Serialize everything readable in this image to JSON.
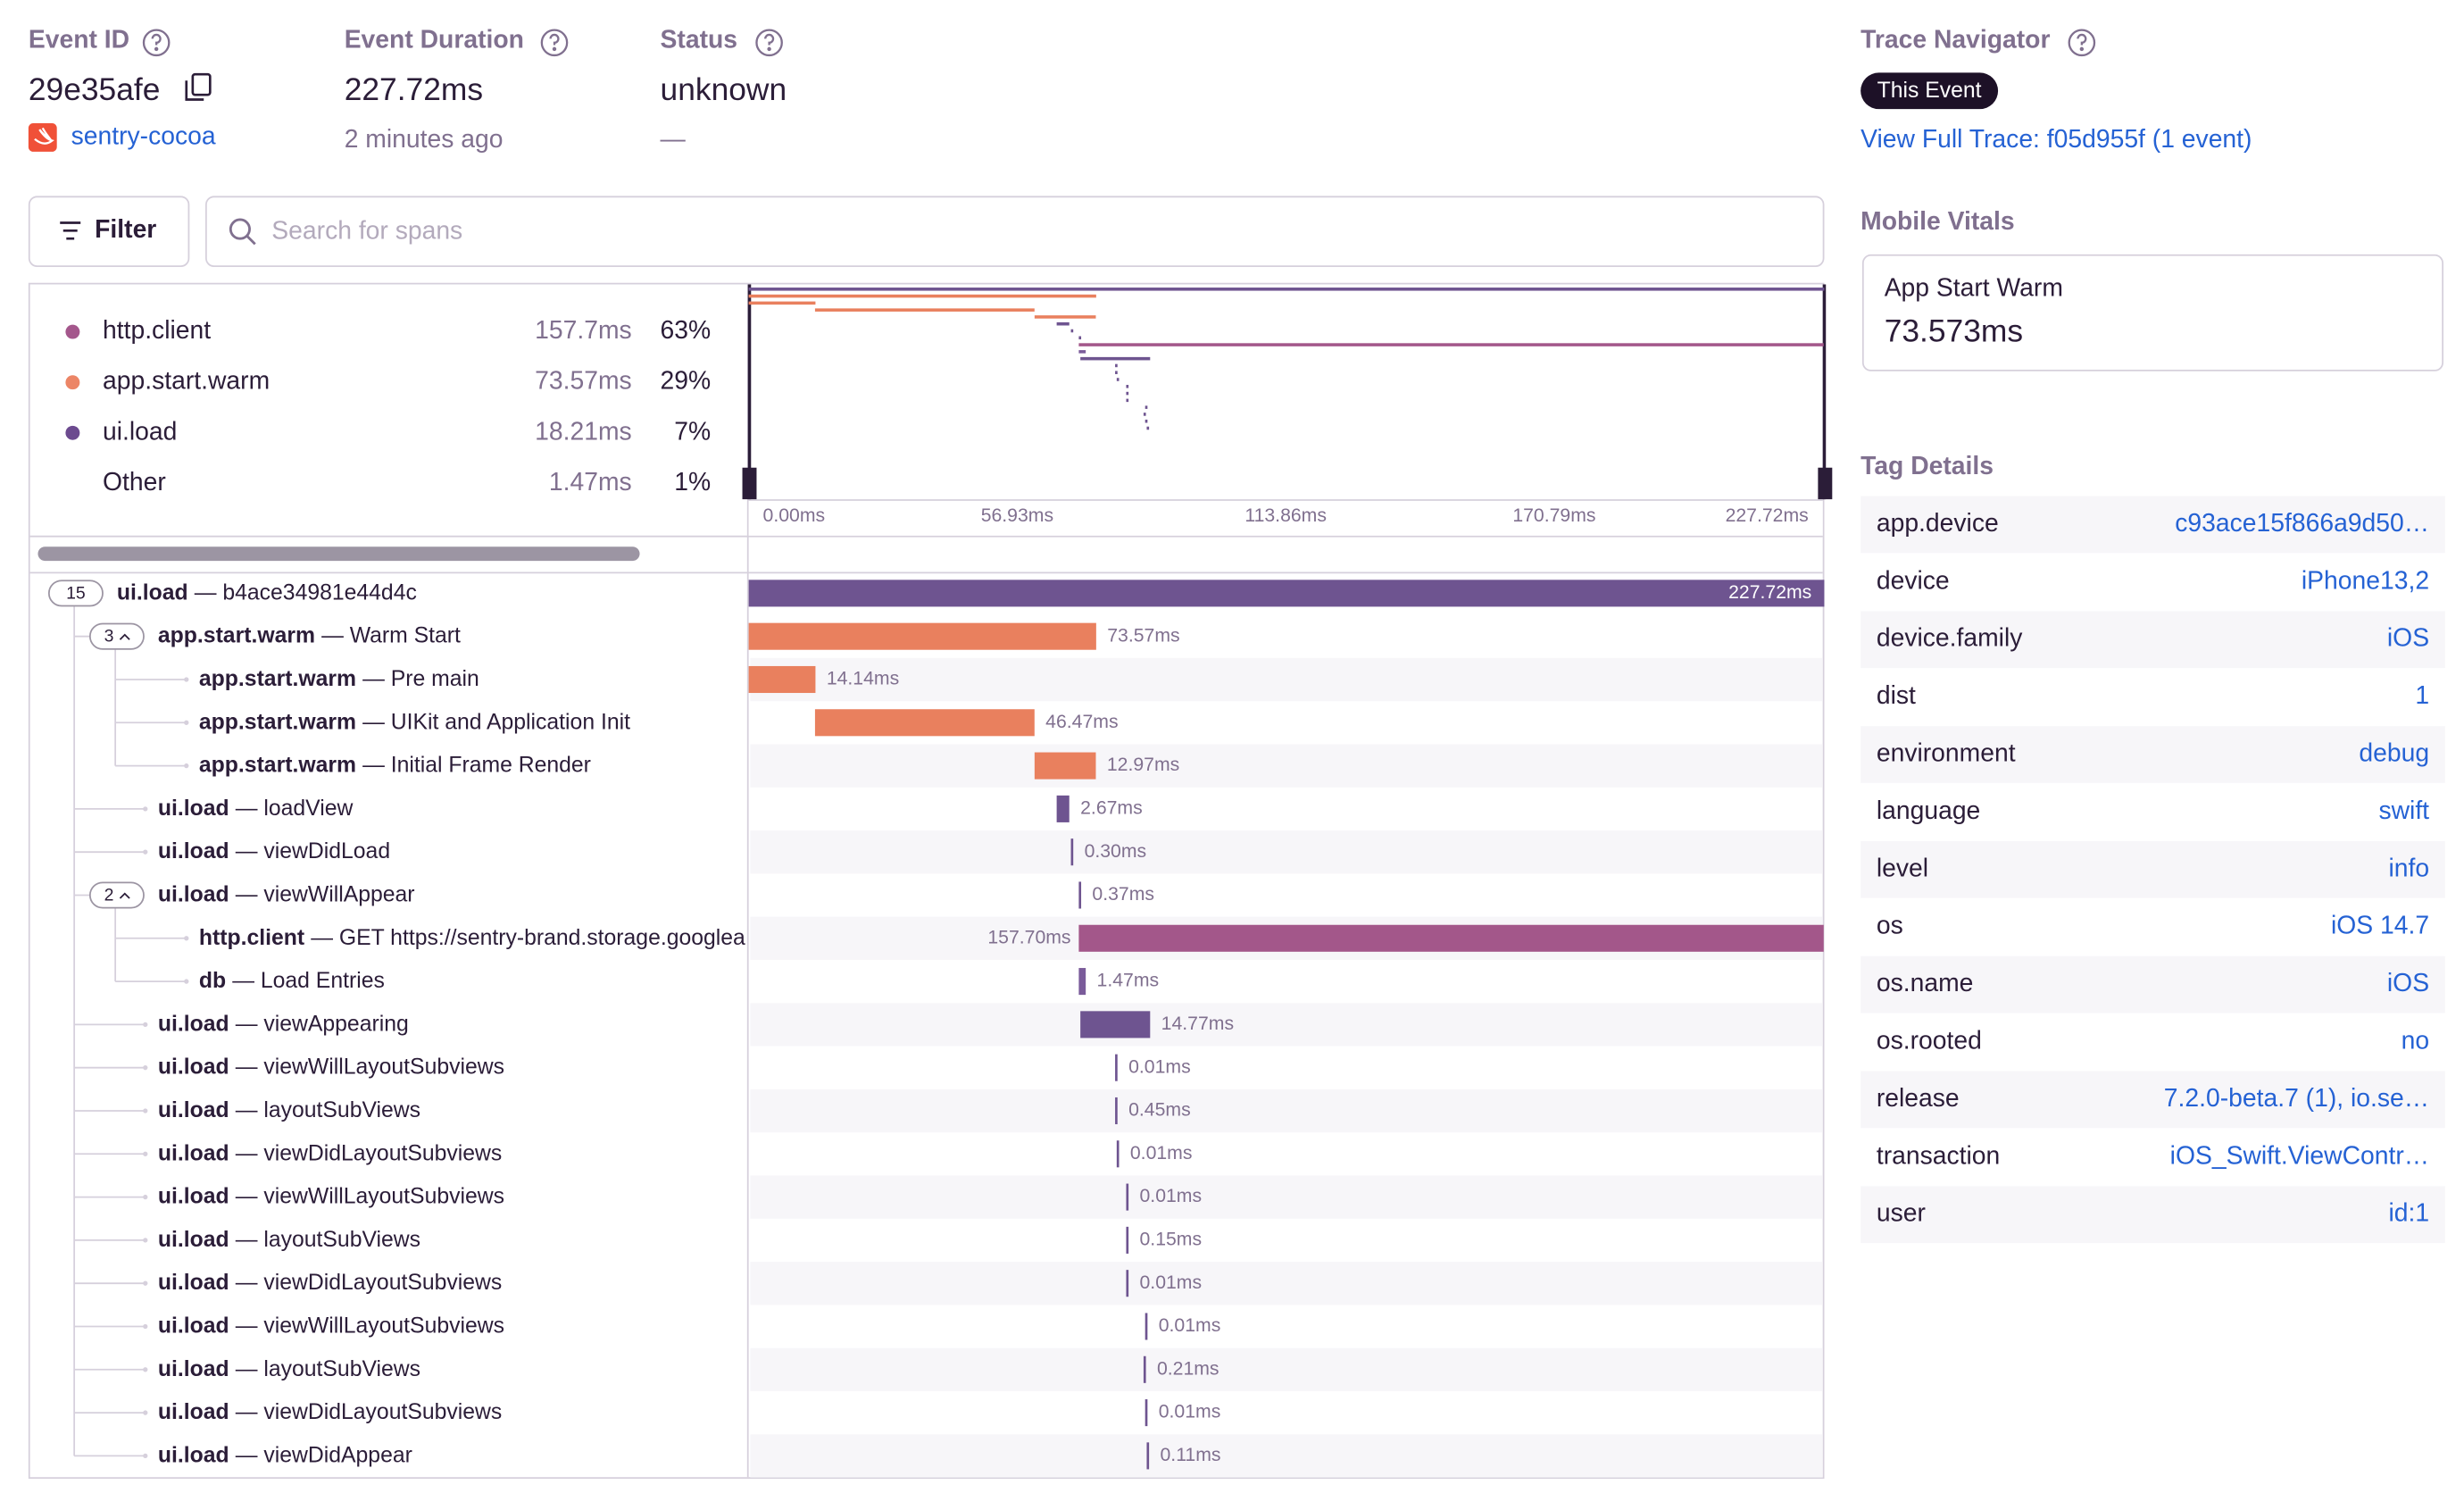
{
  "header": {
    "event_id_label": "Event ID",
    "event_id": "29e35afe",
    "project": "sentry-cocoa",
    "duration_label": "Event Duration",
    "duration": "227.72ms",
    "duration_relative": "2 minutes ago",
    "status_label": "Status",
    "status": "unknown",
    "status_sub": "—"
  },
  "trace_navigator": {
    "title": "Trace Navigator",
    "badge": "This Event",
    "link": "View Full Trace: f05d955f (1 event)"
  },
  "toolbar": {
    "filter": "Filter",
    "search_placeholder": "Search for spans"
  },
  "breakdown": [
    {
      "name": "http.client",
      "duration": "157.7ms",
      "percent": "63%",
      "color": "#a4578c"
    },
    {
      "name": "app.start.warm",
      "duration": "73.57ms",
      "percent": "29%",
      "color": "#ec8566"
    },
    {
      "name": "ui.load",
      "duration": "18.21ms",
      "percent": "7%",
      "color": "#6c4a8f"
    },
    {
      "name": "Other",
      "duration": "1.47ms",
      "percent": "1%"
    }
  ],
  "minimap": {
    "ticks": [
      "0.00ms",
      "56.93ms",
      "113.86ms",
      "170.79ms",
      "227.72ms"
    ]
  },
  "spans": [
    {
      "op": "ui.load",
      "description": "— b4ace34981e44d4c",
      "duration_ms": 227.72,
      "duration_label": "227.72ms",
      "children": "15",
      "color": "#6e5490"
    },
    {
      "op": "app.start.warm",
      "description": "— Warm Start",
      "duration_ms": 73.57,
      "duration_label": "73.57ms",
      "children": "3",
      "color": "#e9805e"
    },
    {
      "op": "app.start.warm",
      "description": "— Pre main",
      "duration_ms": 14.14,
      "duration_label": "14.14ms",
      "color": "#e9805e"
    },
    {
      "op": "app.start.warm",
      "description": "— UIKit and Application Init",
      "duration_ms": 46.47,
      "duration_label": "46.47ms",
      "color": "#e9805e"
    },
    {
      "op": "app.start.warm",
      "description": "— Initial Frame Render",
      "duration_ms": 12.97,
      "duration_label": "12.97ms",
      "color": "#e9805e"
    },
    {
      "op": "ui.load",
      "description": "— loadView",
      "duration_ms": 2.67,
      "duration_label": "2.67ms",
      "color": "#6e5490"
    },
    {
      "op": "ui.load",
      "description": "— viewDidLoad",
      "duration_ms": 0.3,
      "duration_label": "0.30ms",
      "color": "#6e5490"
    },
    {
      "op": "ui.load",
      "description": "— viewWillAppear",
      "duration_ms": 0.37,
      "duration_label": "0.37ms",
      "children": "2",
      "color": "#6e5490"
    },
    {
      "op": "http.client",
      "description": "— GET https://sentry-brand.storage.googlea",
      "duration_ms": 157.7,
      "duration_label": "157.70ms",
      "color": "#a3578a"
    },
    {
      "op": "db",
      "description": "— Load Entries",
      "duration_ms": 1.47,
      "duration_label": "1.47ms",
      "color": "#7a5b9a"
    },
    {
      "op": "ui.load",
      "description": "— viewAppearing",
      "duration_ms": 14.77,
      "duration_label": "14.77ms",
      "color": "#6e5490"
    },
    {
      "op": "ui.load",
      "description": "— viewWillLayoutSubviews",
      "duration_ms": 0.01,
      "duration_label": "0.01ms",
      "color": "#6e5490"
    },
    {
      "op": "ui.load",
      "description": "— layoutSubViews",
      "duration_ms": 0.45,
      "duration_label": "0.45ms",
      "color": "#6e5490"
    },
    {
      "op": "ui.load",
      "description": "— viewDidLayoutSubviews",
      "duration_ms": 0.01,
      "duration_label": "0.01ms",
      "color": "#6e5490"
    },
    {
      "op": "ui.load",
      "description": "— viewWillLayoutSubviews",
      "duration_ms": 0.01,
      "duration_label": "0.01ms",
      "color": "#6e5490"
    },
    {
      "op": "ui.load",
      "description": "— layoutSubViews",
      "duration_ms": 0.15,
      "duration_label": "0.15ms",
      "color": "#6e5490"
    },
    {
      "op": "ui.load",
      "description": "— viewDidLayoutSubviews",
      "duration_ms": 0.01,
      "duration_label": "0.01ms",
      "color": "#6e5490"
    },
    {
      "op": "ui.load",
      "description": "— viewWillLayoutSubviews",
      "duration_ms": 0.01,
      "duration_label": "0.01ms",
      "color": "#6e5490"
    },
    {
      "op": "ui.load",
      "description": "— layoutSubViews",
      "duration_ms": 0.21,
      "duration_label": "0.21ms",
      "color": "#6e5490"
    },
    {
      "op": "ui.load",
      "description": "— viewDidLayoutSubviews",
      "duration_ms": 0.01,
      "duration_label": "0.01ms",
      "color": "#6e5490"
    },
    {
      "op": "ui.load",
      "description": "— viewDidAppear",
      "duration_ms": 0.11,
      "duration_label": "0.11ms",
      "color": "#6e5490"
    }
  ],
  "mobile_vitals": {
    "title": "Mobile Vitals",
    "name": "App Start Warm",
    "value": "73.573ms"
  },
  "tag_details": {
    "title": "Tag Details",
    "rows": [
      [
        "app.device",
        "c93ace15f866a9d50…"
      ],
      [
        "device",
        "iPhone13,2"
      ],
      [
        "device.family",
        "iOS"
      ],
      [
        "dist",
        "1"
      ],
      [
        "environment",
        "debug"
      ],
      [
        "language",
        "swift"
      ],
      [
        "level",
        "info"
      ],
      [
        "os",
        "iOS 14.7"
      ],
      [
        "os.name",
        "iOS"
      ],
      [
        "os.rooted",
        "no"
      ],
      [
        "release",
        "7.2.0-beta.7 (1), io.se…"
      ],
      [
        "transaction",
        "iOS_Swift.ViewContr…"
      ],
      [
        "user",
        "id:1"
      ]
    ]
  }
}
